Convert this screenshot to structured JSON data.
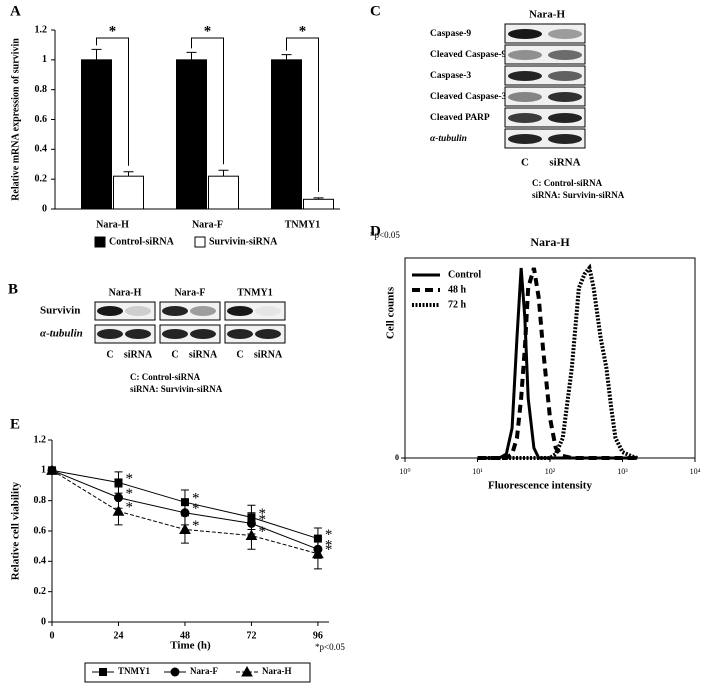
{
  "panels": [
    "A",
    "B",
    "C",
    "D",
    "E"
  ],
  "chart_data": [
    {
      "type": "bar",
      "ylabel": "Relative mRNA expression of survivin",
      "categories": [
        "Nara-H",
        "Nara-F",
        "TNMY1"
      ],
      "series": [
        {
          "name": "Control-siRNA",
          "color": "#000000",
          "values": [
            1,
            1,
            1
          ],
          "errors": [
            0.07,
            0.05,
            0.035
          ]
        },
        {
          "name": "Survivin-siRNA",
          "color": "#ffffff",
          "values": [
            0.22,
            0.22,
            0.065
          ],
          "errors": [
            0.03,
            0.04,
            0.01
          ]
        }
      ],
      "ylim": [
        0,
        1.2
      ],
      "yticks": [
        0,
        0.2,
        0.4,
        0.6,
        0.8,
        1,
        1.2
      ],
      "annotations": [
        "*",
        "*",
        "*"
      ],
      "note": "*p<0.05",
      "legend": "bottom"
    },
    {
      "type": "line",
      "xlabel": "Time (h)",
      "ylabel": "Relative cell viability",
      "x": [
        0,
        24,
        48,
        72,
        96
      ],
      "xlim": [
        0,
        100
      ],
      "xticks": [
        0,
        24,
        48,
        72,
        96
      ],
      "ylim": [
        0,
        1.2
      ],
      "yticks": [
        0,
        0.2,
        0.4,
        0.6,
        0.8,
        1,
        1.2
      ],
      "series": [
        {
          "name": "TNMY1",
          "color": "#000000",
          "style": "solid",
          "marker": "square",
          "values": [
            1,
            0.92,
            0.79,
            0.69,
            0.55
          ],
          "errors": [
            0,
            0.07,
            0.08,
            0.08,
            0.07
          ],
          "star_labels": [
            null,
            "*",
            "*",
            "*",
            "*"
          ]
        },
        {
          "name": "Nara-F",
          "color": "#555555",
          "style": "solid",
          "marker": "circle",
          "values": [
            1,
            0.82,
            0.72,
            0.65,
            0.48
          ],
          "errors": [
            0,
            0.07,
            0.08,
            0.07,
            0.06
          ],
          "star_labels": [
            null,
            "*",
            "*",
            "*",
            "*"
          ]
        },
        {
          "name": "Nara-H",
          "color": "#000000",
          "style": "dashed",
          "marker": "triangle",
          "values": [
            1,
            0.73,
            0.61,
            0.57,
            0.45
          ],
          "errors": [
            0,
            0.09,
            0.09,
            0.09,
            0.1
          ],
          "star_labels": [
            null,
            "*",
            "*",
            "*",
            "*"
          ]
        }
      ],
      "note": "*p<0.05",
      "legend": "bottom"
    },
    {
      "type": "line",
      "title": "Nara-H",
      "xlabel": "Fluorescence intensity",
      "ylabel": "Cell counts",
      "xscale": "log",
      "x": [
        10,
        20,
        25,
        30,
        35,
        40,
        45,
        50,
        60,
        70,
        80,
        100,
        120,
        150,
        200,
        250,
        300,
        350,
        400,
        500,
        600,
        700,
        800,
        1000,
        1300,
        1600
      ],
      "xlim": [
        1,
        10000
      ],
      "xticks": [
        {
          "value": 1,
          "label": "10⁰"
        },
        {
          "value": 10,
          "label": "10¹"
        },
        {
          "value": 100,
          "label": "10²"
        },
        {
          "value": 1000,
          "label": "10³"
        },
        {
          "value": 10000,
          "label": "10⁴"
        }
      ],
      "ylim": [
        0,
        100
      ],
      "yticks": [
        0
      ],
      "series": [
        {
          "name": "Control",
          "color": "#000000",
          "style": "solid",
          "values": [
            0,
            0,
            2,
            15,
            60,
            95,
            70,
            30,
            5,
            0,
            0,
            0,
            0,
            0,
            0,
            0,
            0,
            0,
            0,
            0,
            0,
            0,
            0,
            0,
            0,
            0
          ]
        },
        {
          "name": "48 h",
          "color": "#000000",
          "style": "dashed",
          "values": [
            0,
            0,
            0,
            2,
            10,
            30,
            55,
            85,
            95,
            80,
            55,
            20,
            5,
            1,
            0,
            0,
            0,
            0,
            0,
            0,
            0,
            0,
            0,
            0,
            0,
            0
          ]
        },
        {
          "name": "72 h",
          "color": "#000000",
          "style": "dotted",
          "values": [
            0,
            0,
            0,
            0,
            0,
            0,
            0,
            0,
            0,
            0,
            0,
            0,
            2,
            10,
            45,
            85,
            92,
            95,
            85,
            60,
            45,
            25,
            10,
            3,
            1,
            0
          ]
        }
      ],
      "legend": "upper left"
    }
  ],
  "blot_b": {
    "rows": [
      "Survivin",
      "α-tubulin"
    ],
    "cell_lines": [
      "Nara-H",
      "Nara-F",
      "TNMY1"
    ],
    "lanes": [
      "C",
      "siRNA"
    ],
    "notes": [
      "C: Control-siRNA",
      "siRNA: Survivin-siRNA"
    ]
  },
  "blot_c": {
    "title": "Nara-H",
    "rows": [
      "Caspase-9",
      "Cleaved Caspase-9",
      "Caspase-3",
      "Cleaved Caspase-3",
      "Cleaved PARP",
      "α-tubulin"
    ],
    "lanes": [
      "C",
      "siRNA"
    ],
    "notes": [
      "C: Control-siRNA",
      "siRNA: Survivin-siRNA"
    ]
  }
}
